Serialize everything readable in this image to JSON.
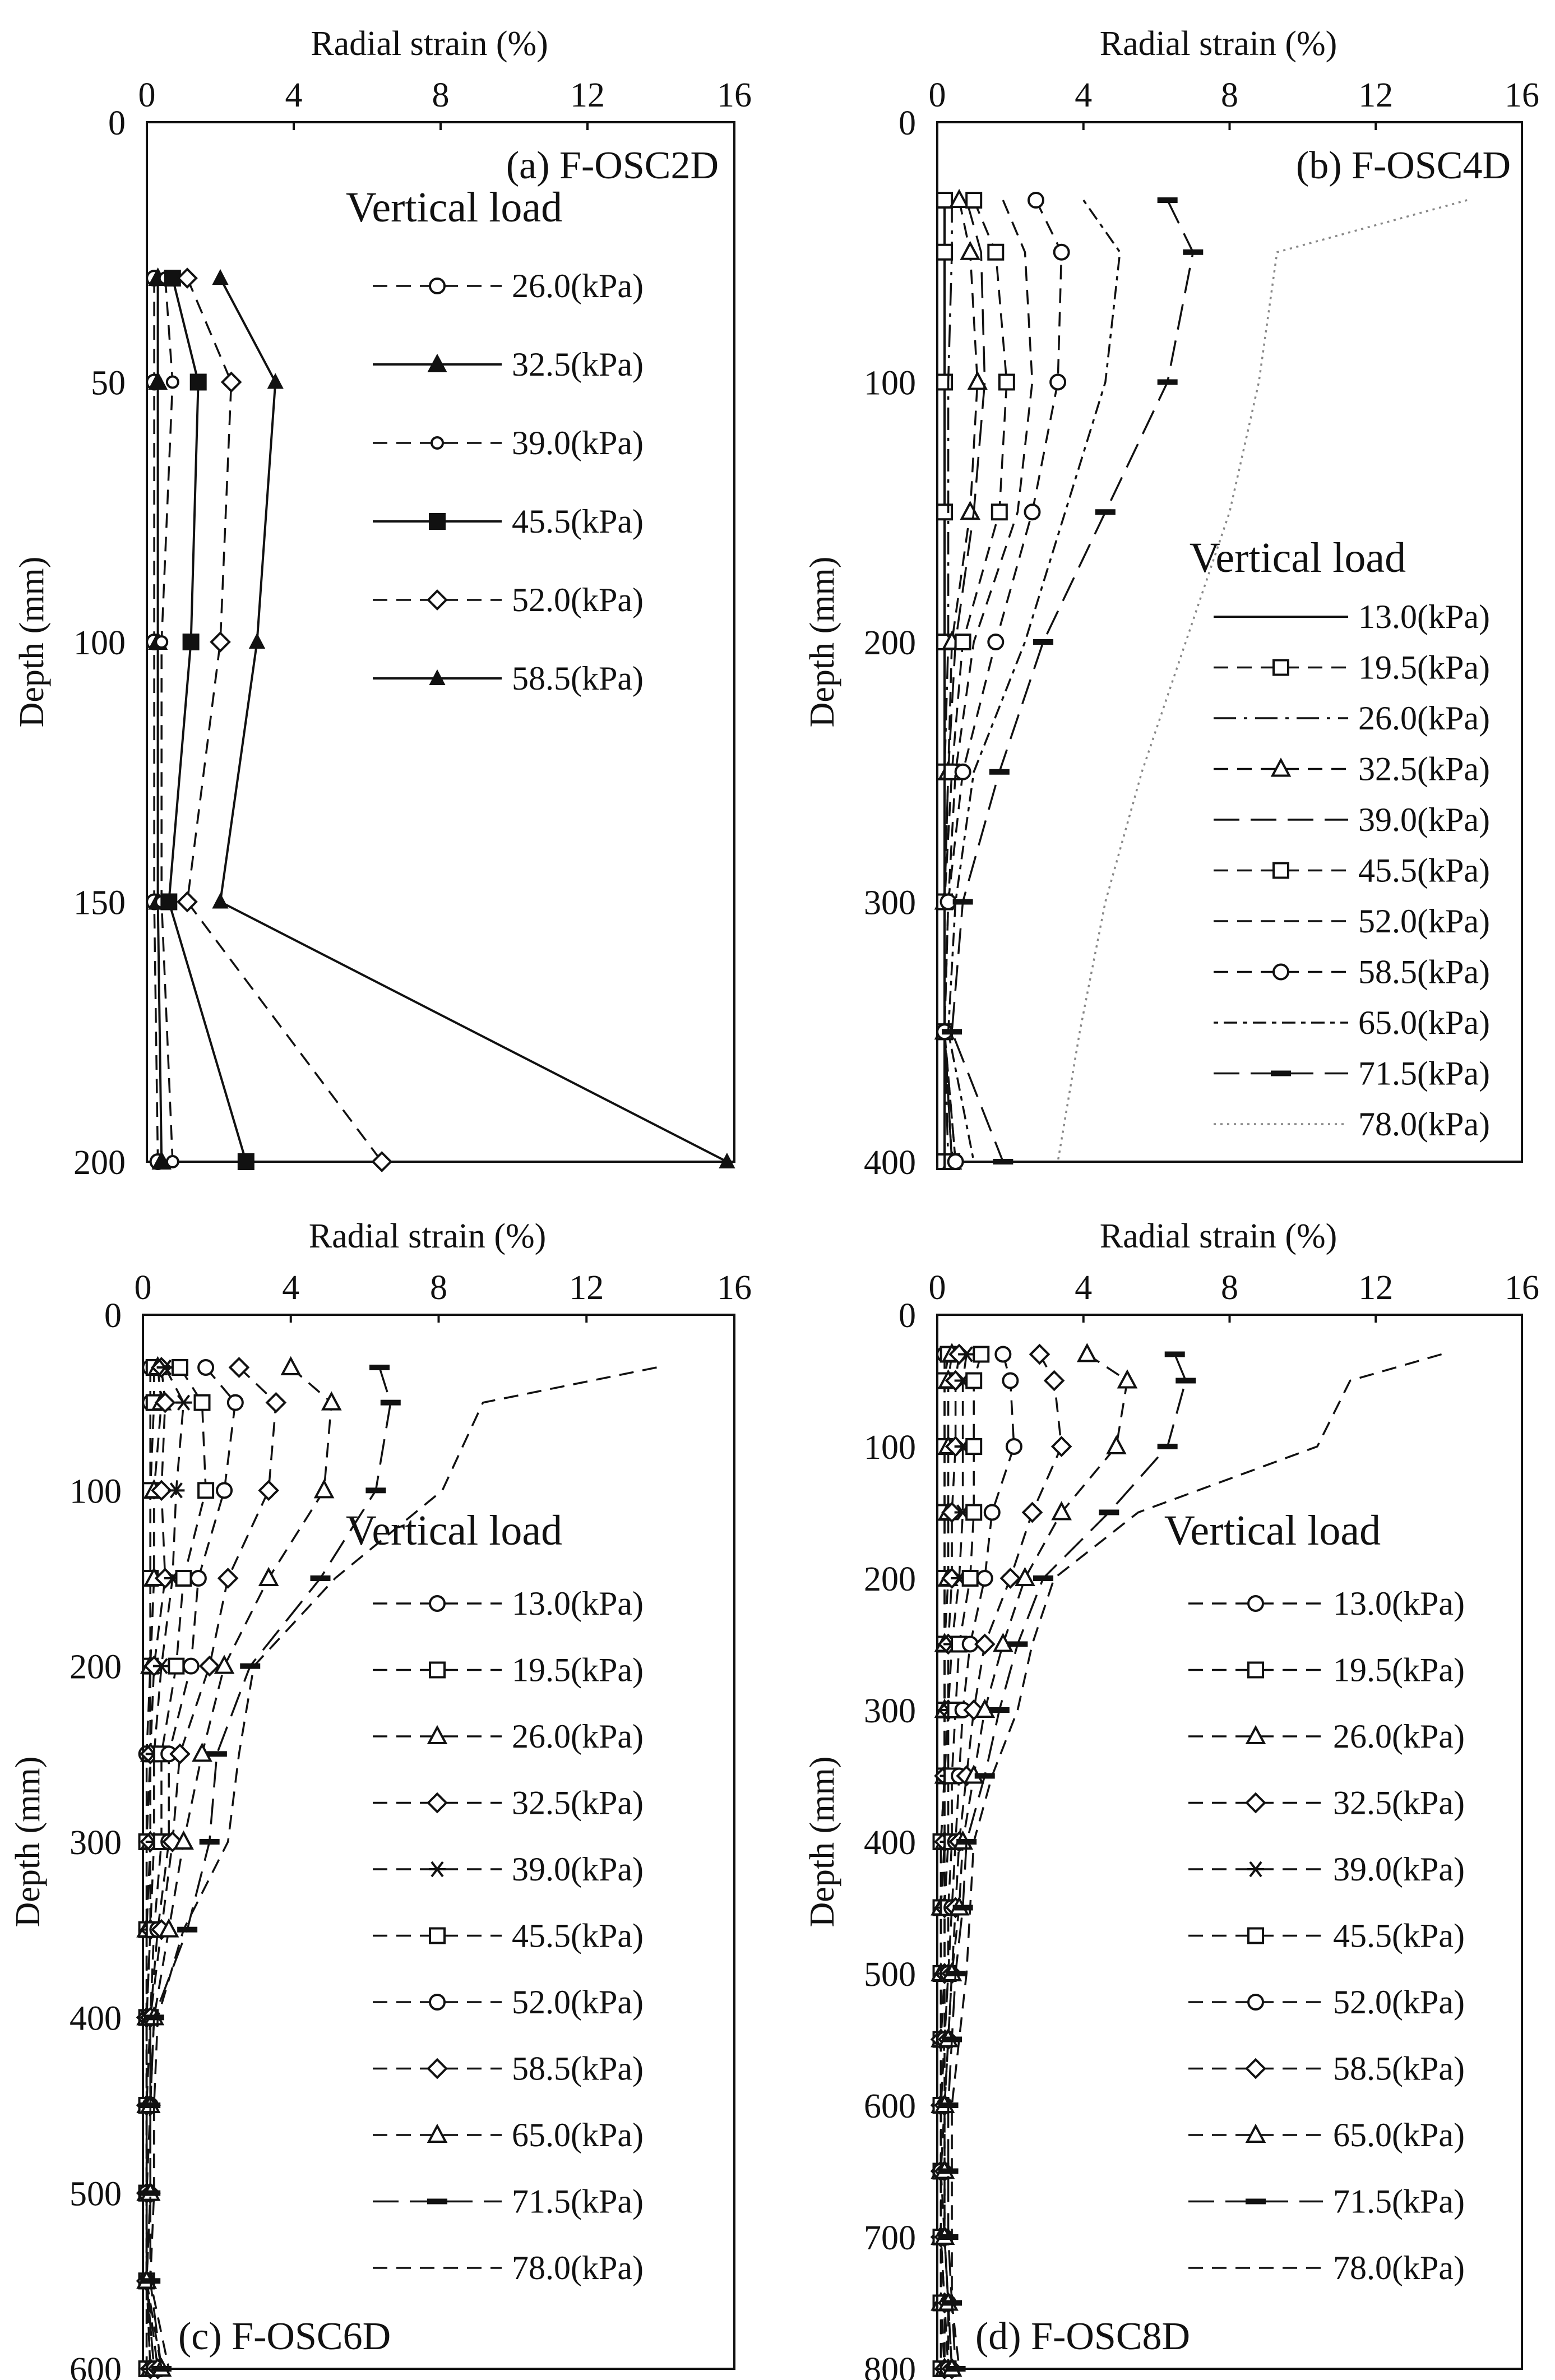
{
  "figure": {
    "panels": [
      "panel-a",
      "panel-b",
      "panel-c",
      "panel-d"
    ]
  },
  "chart_data": [
    {
      "id": "panel-a",
      "type": "line",
      "label": "(a) F-OSC2D",
      "xlabel": "Radial strain (%)",
      "ylabel": "Depth (mm)",
      "xlim": [
        0,
        16
      ],
      "xticks": [
        0,
        4,
        8,
        12,
        16
      ],
      "ylim": [
        0,
        200
      ],
      "yticks": [
        0,
        50,
        100,
        150,
        200
      ],
      "grid": false,
      "legend": {
        "title": "Vertical load",
        "position": "center-right"
      },
      "depths": [
        30,
        50,
        100,
        150,
        200
      ],
      "series": [
        {
          "name": "26.0(kPa)",
          "marker": "circle-open",
          "dash": "dashed",
          "values": [
            0.2,
            0.2,
            0.2,
            0.2,
            0.3
          ]
        },
        {
          "name": "32.5(kPa)",
          "marker": "triangle-filled",
          "dash": "solid",
          "values": [
            0.3,
            0.3,
            0.3,
            0.3,
            0.4
          ]
        },
        {
          "name": "39.0(kPa)",
          "marker": "circle-open-small",
          "dash": "dashed",
          "values": [
            0.5,
            0.7,
            0.4,
            0.4,
            0.7
          ]
        },
        {
          "name": "45.5(kPa)",
          "marker": "square-filled",
          "dash": "solid",
          "values": [
            0.7,
            1.4,
            1.2,
            0.6,
            2.7
          ]
        },
        {
          "name": "52.0(kPa)",
          "marker": "diamond-open",
          "dash": "dashed",
          "values": [
            1.1,
            2.3,
            2.0,
            1.1,
            6.4
          ]
        },
        {
          "name": "58.5(kPa)",
          "marker": "triangle-filled-small",
          "dash": "solid",
          "values": [
            2.0,
            3.5,
            3.0,
            2.0,
            15.8
          ]
        }
      ]
    },
    {
      "id": "panel-b",
      "type": "line",
      "label": "(b) F-OSC4D",
      "xlabel": "Radial strain (%)",
      "ylabel": "Depth (mm)",
      "xlim": [
        0,
        16
      ],
      "xticks": [
        0,
        4,
        8,
        12,
        16
      ],
      "ylim": [
        0,
        400
      ],
      "yticks": [
        0,
        100,
        200,
        300,
        400
      ],
      "grid": false,
      "legend": {
        "title": "Vertical load",
        "position": "center-right"
      },
      "depths": [
        30,
        50,
        100,
        150,
        200,
        250,
        300,
        350,
        400
      ],
      "series": [
        {
          "name": "13.0(kPa)",
          "marker": "none",
          "dash": "solid",
          "values": [
            0.2,
            0.2,
            0.2,
            0.2,
            0.2,
            0.2,
            0.2,
            0.2,
            0.2
          ]
        },
        {
          "name": "19.5(kPa)",
          "marker": "square-open",
          "dash": "dashed",
          "values": [
            0.2,
            0.2,
            0.2,
            0.2,
            0.2,
            0.2,
            0.2,
            0.2,
            0.2
          ]
        },
        {
          "name": "26.0(kPa)",
          "marker": "none",
          "dash": "dashdot",
          "values": [
            0.4,
            0.4,
            0.3,
            0.3,
            0.3,
            0.2,
            0.2,
            0.2,
            0.3
          ]
        },
        {
          "name": "32.5(kPa)",
          "marker": "triangle-open",
          "dash": "dashed",
          "values": [
            0.6,
            0.9,
            1.1,
            0.9,
            0.4,
            0.3,
            0.2,
            0.2,
            0.4
          ]
        },
        {
          "name": "39.0(kPa)",
          "marker": "none",
          "dash": "longdash",
          "values": [
            0.8,
            1.2,
            1.3,
            1.0,
            0.5,
            0.3,
            0.2,
            0.2,
            0.4
          ]
        },
        {
          "name": "45.5(kPa)",
          "marker": "square-open",
          "dash": "dashed",
          "values": [
            1.0,
            1.6,
            1.9,
            1.7,
            0.7,
            0.4,
            0.2,
            0.2,
            0.4
          ]
        },
        {
          "name": "52.0(kPa)",
          "marker": "none",
          "dash": "dashed",
          "values": [
            1.8,
            2.4,
            2.6,
            2.2,
            1.0,
            0.5,
            0.3,
            0.2,
            0.5
          ]
        },
        {
          "name": "58.5(kPa)",
          "marker": "circle-open",
          "dash": "dashed",
          "values": [
            2.7,
            3.4,
            3.3,
            2.6,
            1.6,
            0.7,
            0.3,
            0.2,
            0.5
          ]
        },
        {
          "name": "65.0(kPa)",
          "marker": "none",
          "dash": "dotdash",
          "values": [
            4.0,
            5.0,
            4.6,
            3.5,
            2.4,
            1.0,
            0.5,
            0.3,
            1.0
          ]
        },
        {
          "name": "71.5(kPa)",
          "marker": "bar",
          "dash": "longdash",
          "values": [
            6.3,
            7.0,
            6.3,
            4.6,
            2.9,
            1.7,
            0.7,
            0.4,
            1.8
          ]
        },
        {
          "name": "78.0(kPa)",
          "marker": "none",
          "dash": "dotted",
          "values": [
            14.5,
            9.3,
            8.8,
            8.0,
            6.8,
            5.6,
            4.6,
            3.9,
            3.3
          ]
        }
      ]
    },
    {
      "id": "panel-c",
      "type": "line",
      "label": "(c) F-OSC6D",
      "xlabel": "Radial strain (%)",
      "ylabel": "Depth (mm)",
      "xlim": [
        0,
        16
      ],
      "xticks": [
        0,
        4,
        8,
        12,
        16
      ],
      "ylim": [
        0,
        600
      ],
      "yticks": [
        0,
        100,
        200,
        300,
        400,
        500,
        600
      ],
      "grid": false,
      "legend": {
        "title": "Vertical load",
        "position": "center-right"
      },
      "depths": [
        30,
        50,
        100,
        150,
        200,
        250,
        300,
        350,
        400,
        450,
        500,
        550,
        600
      ],
      "series": [
        {
          "name": "13.0(kPa)",
          "marker": "circle-open",
          "dash": "dashed",
          "values": [
            0.2,
            0.2,
            0.2,
            0.2,
            0.2,
            0.1,
            0.1,
            0.1,
            0.1,
            0.1,
            0.1,
            0.1,
            0.1
          ]
        },
        {
          "name": "19.5(kPa)",
          "marker": "square-open",
          "dash": "dashed",
          "values": [
            0.3,
            0.3,
            0.2,
            0.2,
            0.2,
            0.2,
            0.1,
            0.1,
            0.1,
            0.1,
            0.1,
            0.1,
            0.1
          ]
        },
        {
          "name": "26.0(kPa)",
          "marker": "triangle-open",
          "dash": "dashed",
          "values": [
            0.4,
            0.5,
            0.3,
            0.3,
            0.2,
            0.2,
            0.2,
            0.1,
            0.1,
            0.1,
            0.1,
            0.1,
            0.2
          ]
        },
        {
          "name": "32.5(kPa)",
          "marker": "diamond-open",
          "dash": "dashed",
          "values": [
            0.5,
            0.6,
            0.5,
            0.6,
            0.3,
            0.2,
            0.2,
            0.2,
            0.1,
            0.1,
            0.1,
            0.1,
            0.2
          ]
        },
        {
          "name": "39.0(kPa)",
          "marker": "asterisk",
          "dash": "dashed",
          "values": [
            0.6,
            1.1,
            0.9,
            0.8,
            0.5,
            0.3,
            0.3,
            0.2,
            0.1,
            0.1,
            0.1,
            0.1,
            0.2
          ]
        },
        {
          "name": "45.5(kPa)",
          "marker": "square-open",
          "dash": "dashed",
          "values": [
            1.0,
            1.6,
            1.7,
            1.1,
            0.9,
            0.5,
            0.5,
            0.3,
            0.2,
            0.1,
            0.1,
            0.1,
            0.3
          ]
        },
        {
          "name": "52.0(kPa)",
          "marker": "circle-open",
          "dash": "dashed",
          "values": [
            1.7,
            2.5,
            2.2,
            1.5,
            1.3,
            0.7,
            0.7,
            0.4,
            0.2,
            0.2,
            0.1,
            0.1,
            0.3
          ]
        },
        {
          "name": "58.5(kPa)",
          "marker": "diamond-open",
          "dash": "dashed",
          "values": [
            2.6,
            3.6,
            3.4,
            2.3,
            1.8,
            1.0,
            0.8,
            0.5,
            0.2,
            0.2,
            0.2,
            0.1,
            0.4
          ]
        },
        {
          "name": "65.0(kPa)",
          "marker": "triangle-open",
          "dash": "dashed",
          "values": [
            4.0,
            5.1,
            4.9,
            3.4,
            2.2,
            1.6,
            1.1,
            0.7,
            0.3,
            0.2,
            0.2,
            0.1,
            0.5
          ]
        },
        {
          "name": "71.5(kPa)",
          "marker": "bar",
          "dash": "longdash",
          "values": [
            6.4,
            6.7,
            6.3,
            4.8,
            2.9,
            2.0,
            1.8,
            1.2,
            0.3,
            0.2,
            0.2,
            0.2,
            0.5
          ]
        },
        {
          "name": "78.0(kPa)",
          "marker": "none",
          "dash": "dashed",
          "values": [
            13.9,
            9.2,
            8.1,
            5.2,
            3.0,
            2.6,
            2.3,
            1.1,
            0.4,
            0.3,
            0.3,
            0.2,
            0.7
          ]
        }
      ]
    },
    {
      "id": "panel-d",
      "type": "line",
      "label": "(d) F-OSC8D",
      "xlabel": "Radial strain (%)",
      "ylabel": "Depth (mm)",
      "xlim": [
        0,
        16
      ],
      "xticks": [
        0,
        4,
        8,
        12,
        16
      ],
      "ylim": [
        0,
        800
      ],
      "yticks": [
        0,
        100,
        200,
        300,
        400,
        500,
        600,
        700,
        800
      ],
      "grid": false,
      "legend": {
        "title": "Vertical load",
        "position": "center-right"
      },
      "depths": [
        30,
        50,
        100,
        150,
        200,
        250,
        300,
        350,
        400,
        450,
        500,
        550,
        600,
        650,
        700,
        750,
        800
      ],
      "series": [
        {
          "name": "13.0(kPa)",
          "marker": "circle-open",
          "dash": "dashed",
          "values": [
            0.2,
            0.2,
            0.2,
            0.2,
            0.2,
            0.2,
            0.2,
            0.2,
            0.1,
            0.1,
            0.1,
            0.1,
            0.1,
            0.1,
            0.1,
            0.1,
            0.1
          ]
        },
        {
          "name": "19.5(kPa)",
          "marker": "square-open",
          "dash": "dashed",
          "values": [
            0.3,
            0.2,
            0.2,
            0.2,
            0.2,
            0.2,
            0.2,
            0.2,
            0.1,
            0.1,
            0.1,
            0.1,
            0.1,
            0.1,
            0.1,
            0.1,
            0.1
          ]
        },
        {
          "name": "26.0(kPa)",
          "marker": "triangle-open",
          "dash": "dashed",
          "values": [
            0.4,
            0.3,
            0.3,
            0.3,
            0.3,
            0.2,
            0.2,
            0.2,
            0.2,
            0.1,
            0.1,
            0.1,
            0.1,
            0.1,
            0.1,
            0.1,
            0.2
          ]
        },
        {
          "name": "32.5(kPa)",
          "marker": "diamond-open",
          "dash": "dashed",
          "values": [
            0.6,
            0.5,
            0.5,
            0.4,
            0.4,
            0.3,
            0.3,
            0.2,
            0.2,
            0.2,
            0.2,
            0.1,
            0.1,
            0.1,
            0.1,
            0.2,
            0.2
          ]
        },
        {
          "name": "39.0(kPa)",
          "marker": "asterisk",
          "dash": "dashed",
          "values": [
            0.8,
            0.7,
            0.7,
            0.7,
            0.6,
            0.4,
            0.3,
            0.3,
            0.3,
            0.2,
            0.2,
            0.2,
            0.1,
            0.1,
            0.1,
            0.2,
            0.2
          ]
        },
        {
          "name": "45.5(kPa)",
          "marker": "square-open",
          "dash": "dashed",
          "values": [
            1.2,
            1.0,
            1.0,
            1.0,
            0.9,
            0.6,
            0.5,
            0.4,
            0.4,
            0.3,
            0.3,
            0.2,
            0.1,
            0.1,
            0.1,
            0.2,
            0.3
          ]
        },
        {
          "name": "52.0(kPa)",
          "marker": "circle-open",
          "dash": "dashed",
          "values": [
            1.8,
            2.0,
            2.1,
            1.5,
            1.3,
            0.9,
            0.7,
            0.6,
            0.5,
            0.4,
            0.3,
            0.2,
            0.2,
            0.1,
            0.2,
            0.3,
            0.3
          ]
        },
        {
          "name": "58.5(kPa)",
          "marker": "diamond-open",
          "dash": "dashed",
          "values": [
            2.8,
            3.2,
            3.4,
            2.6,
            2.0,
            1.3,
            1.0,
            0.8,
            0.6,
            0.5,
            0.4,
            0.3,
            0.2,
            0.2,
            0.2,
            0.3,
            0.4
          ]
        },
        {
          "name": "65.0(kPa)",
          "marker": "triangle-open",
          "dash": "dashed",
          "values": [
            4.1,
            5.2,
            4.9,
            3.4,
            2.4,
            1.8,
            1.3,
            1.0,
            0.7,
            0.6,
            0.4,
            0.3,
            0.2,
            0.2,
            0.2,
            0.3,
            0.4
          ]
        },
        {
          "name": "71.5(kPa)",
          "marker": "bar",
          "dash": "longdash",
          "values": [
            6.5,
            6.8,
            6.3,
            4.7,
            2.9,
            2.2,
            1.7,
            1.3,
            0.8,
            0.7,
            0.5,
            0.4,
            0.3,
            0.3,
            0.3,
            0.4,
            0.5
          ]
        },
        {
          "name": "78.0(kPa)",
          "marker": "none",
          "dash": "dashed",
          "values": [
            13.8,
            11.3,
            10.4,
            5.5,
            3.2,
            2.6,
            2.2,
            1.5,
            1.0,
            0.9,
            0.8,
            0.6,
            0.4,
            0.4,
            0.4,
            0.4,
            0.6
          ]
        }
      ]
    }
  ]
}
